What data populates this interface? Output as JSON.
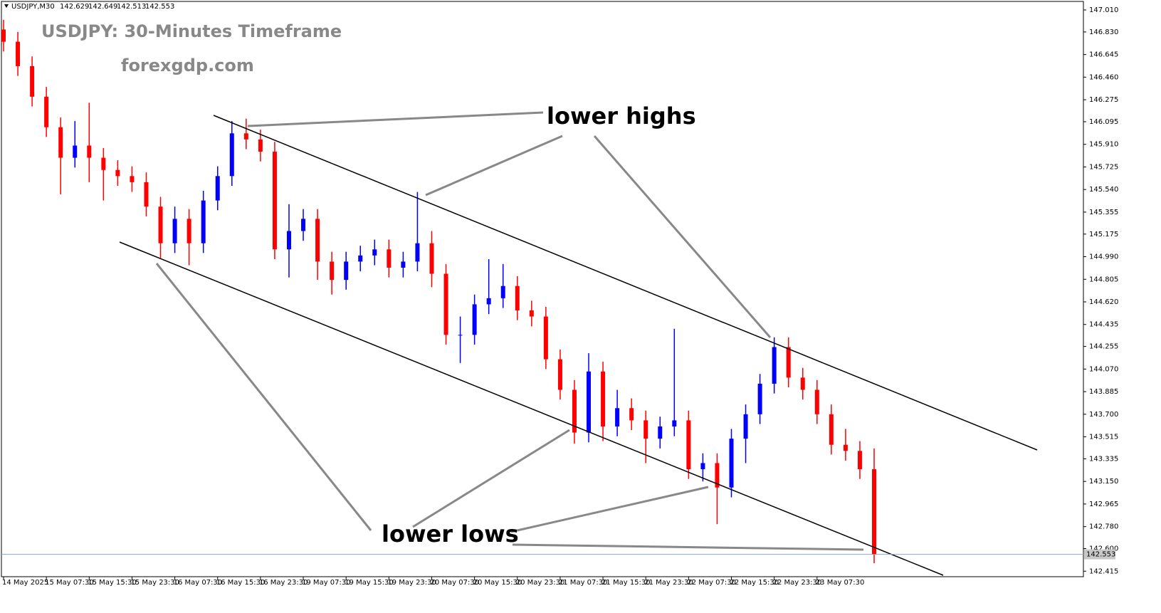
{
  "chart_data": {
    "type": "candlestick",
    "symbol": "USDJPY,M30",
    "header_values": [
      {
        "value": 142.629,
        "label": "142.629"
      },
      {
        "value": 142.649,
        "label": "142.649"
      },
      {
        "value": 142.513,
        "label": "142.513"
      },
      {
        "value": 142.553,
        "label": "142.553"
      }
    ],
    "title": "USDJPY: 30-Minutes Timeframe",
    "subtitle": "forexgdp.com",
    "annotations": [
      "lower highs",
      "lower lows"
    ],
    "up_color": "#0000ff",
    "down_color": "#ff0000",
    "x_labels": [
      "14 May 2025",
      "15 May 07:30",
      "15 May 15:30",
      "15 May 23:30",
      "16 May 07:30",
      "16 May 15:30",
      "16 May 23:30",
      "19 May 07:30",
      "19 May 15:30",
      "19 May 23:30",
      "20 May 07:30",
      "20 May 15:30",
      "20 May 23:30",
      "21 May 07:30",
      "21 May 15:30",
      "21 May 23:30",
      "22 May 07:30",
      "22 May 15:30",
      "22 May 23:30",
      "23 May 07:30"
    ],
    "open": [
      146.85,
      146.75,
      146.55,
      146.3,
      146.05,
      145.8,
      145.9,
      145.8,
      145.7,
      145.65,
      145.6,
      145.4,
      145.1,
      145.3,
      145.1,
      145.45,
      145.65,
      146.0,
      145.95,
      145.85,
      145.05,
      145.2,
      145.3,
      144.95,
      144.8,
      144.95,
      145.0,
      145.05,
      144.9,
      144.95,
      145.1,
      144.85,
      144.35,
      144.35,
      144.6,
      144.65,
      144.75,
      144.55,
      144.5,
      144.15,
      143.9,
      143.55,
      144.05,
      143.6,
      143.75,
      143.65,
      143.5,
      143.6,
      143.65,
      143.25,
      143.3,
      143.1,
      143.5,
      143.7,
      143.95,
      144.25,
      144.0,
      143.9,
      143.7,
      143.45,
      143.4,
      143.25
    ],
    "high": [
      146.93,
      146.83,
      146.63,
      146.38,
      146.13,
      146.1,
      146.25,
      145.88,
      145.78,
      145.73,
      145.68,
      145.48,
      145.4,
      145.38,
      145.53,
      145.73,
      146.1,
      146.12,
      146.03,
      145.93,
      145.42,
      145.38,
      145.38,
      145.03,
      145.03,
      145.08,
      145.13,
      145.13,
      145.03,
      145.52,
      145.2,
      144.93,
      144.5,
      144.68,
      144.97,
      144.93,
      144.83,
      144.63,
      144.58,
      144.23,
      143.98,
      144.2,
      144.13,
      143.9,
      143.83,
      143.73,
      143.68,
      144.4,
      143.73,
      143.38,
      143.38,
      143.58,
      143.78,
      144.03,
      144.33,
      144.33,
      144.08,
      143.98,
      143.78,
      143.58,
      143.48,
      143.42
    ],
    "low": [
      146.67,
      146.47,
      146.22,
      145.97,
      145.5,
      145.72,
      145.6,
      145.45,
      145.57,
      145.52,
      145.32,
      144.98,
      145.02,
      144.92,
      145.02,
      145.37,
      145.57,
      145.87,
      145.77,
      144.97,
      144.82,
      145.12,
      144.8,
      144.68,
      144.72,
      144.87,
      144.92,
      144.82,
      144.82,
      144.87,
      144.74,
      144.27,
      144.12,
      144.27,
      144.52,
      144.57,
      144.47,
      144.42,
      144.07,
      143.82,
      143.46,
      143.47,
      143.48,
      143.52,
      143.57,
      143.3,
      143.42,
      143.52,
      143.17,
      143.15,
      142.8,
      143.02,
      143.3,
      143.62,
      143.87,
      143.92,
      143.82,
      143.62,
      143.37,
      143.32,
      143.17,
      142.48
    ],
    "close": [
      146.75,
      146.55,
      146.3,
      146.05,
      145.8,
      145.9,
      145.8,
      145.7,
      145.65,
      145.6,
      145.4,
      145.1,
      145.3,
      145.1,
      145.45,
      145.65,
      146.0,
      145.95,
      145.85,
      145.05,
      145.2,
      145.3,
      144.95,
      144.8,
      144.95,
      145.0,
      145.05,
      144.9,
      144.95,
      145.1,
      144.85,
      144.35,
      144.35,
      144.6,
      144.65,
      144.75,
      144.55,
      144.5,
      144.15,
      143.9,
      143.55,
      144.05,
      143.6,
      143.75,
      143.65,
      143.5,
      143.6,
      143.65,
      143.25,
      143.3,
      143.1,
      143.5,
      143.7,
      143.95,
      144.25,
      144.0,
      143.9,
      143.7,
      143.45,
      143.4,
      143.25,
      142.55
    ],
    "last_price": {
      "value": 142.553,
      "label": "142.553"
    },
    "ylim": [
      142.37,
      147.08
    ],
    "yticks": [
      {
        "value": 147.01,
        "label": "147.010"
      },
      {
        "value": 146.83,
        "label": "146.830"
      },
      146.645,
      {
        "value": 146.46,
        "label": "146.460"
      },
      146.275,
      146.095,
      {
        "value": 145.91,
        "label": "145.910"
      },
      145.725,
      {
        "value": 145.54,
        "label": "145.540"
      },
      145.355,
      145.175,
      {
        "value": 144.99,
        "label": "144.990"
      },
      144.805,
      {
        "value": 144.62,
        "label": "144.620"
      },
      144.435,
      144.255,
      {
        "value": 144.07,
        "label": "144.070"
      },
      143.885,
      {
        "value": 143.7,
        "label": "143.700"
      },
      143.515,
      143.335,
      {
        "value": 143.15,
        "label": "143.150"
      },
      142.965,
      {
        "value": 142.78,
        "label": "142.780"
      },
      {
        "value": 142.6,
        "label": "142.600"
      },
      142.415
    ]
  }
}
